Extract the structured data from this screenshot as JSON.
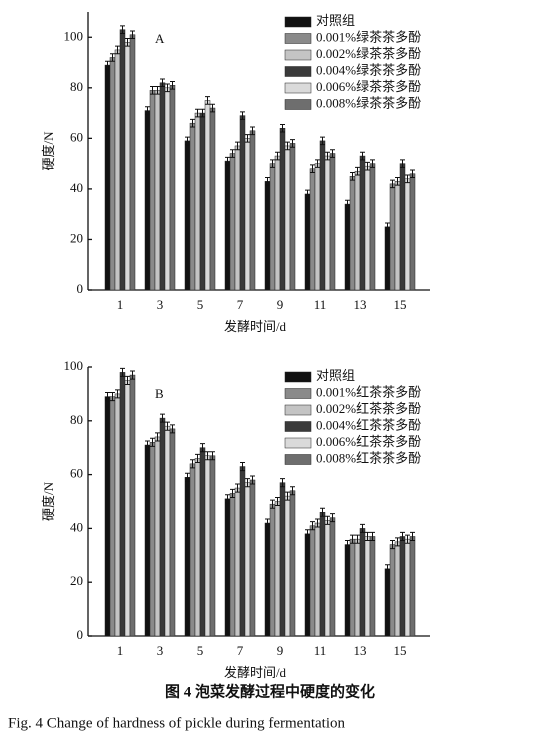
{
  "chart_data": [
    {
      "type": "bar",
      "annotation": "A",
      "x_label": "发酵时间/d",
      "y_label": "硬度/N",
      "categories": [
        "1",
        "3",
        "5",
        "7",
        "9",
        "11",
        "13",
        "15"
      ],
      "ylim": [
        0,
        110
      ],
      "yticks": [
        0,
        20,
        40,
        60,
        80,
        100
      ],
      "series": [
        {
          "name": "对照组",
          "color": "#111111",
          "values": [
            89,
            71,
            59,
            51,
            43,
            38,
            34,
            25
          ],
          "errors": [
            1.5,
            1.5,
            1.5,
            1.5,
            1.5,
            1.5,
            1.5,
            1.5
          ]
        },
        {
          "name": "0.001%绿茶茶多酚",
          "color": "#8a8a8a",
          "values": [
            92,
            79,
            66,
            54,
            50,
            48,
            45,
            42
          ],
          "errors": [
            1.5,
            1.5,
            1.5,
            1.5,
            1.5,
            1.5,
            1.5,
            1.5
          ]
        },
        {
          "name": "0.002%绿茶茶多酚",
          "color": "#c4c4c4",
          "values": [
            95,
            79,
            70,
            57,
            53,
            50,
            47,
            43
          ],
          "errors": [
            1.5,
            1.5,
            1.5,
            1.5,
            1.5,
            1.5,
            1.5,
            1.5
          ]
        },
        {
          "name": "0.004%绿茶茶多酚",
          "color": "#3a3a3a",
          "values": [
            103,
            82,
            70,
            69,
            64,
            59,
            53,
            50
          ],
          "errors": [
            1.5,
            1.5,
            1.5,
            1.5,
            1.5,
            1.5,
            1.5,
            1.5
          ]
        },
        {
          "name": "0.006%绿茶茶多酚",
          "color": "#dadada",
          "values": [
            98,
            80,
            75,
            60,
            57,
            53,
            49,
            44
          ],
          "errors": [
            1.5,
            1.5,
            1.5,
            1.5,
            1.5,
            1.5,
            1.5,
            1.5
          ]
        },
        {
          "name": "0.008%绿茶茶多酚",
          "color": "#6e6e6e",
          "values": [
            101,
            81,
            72,
            63,
            58,
            54,
            50,
            46
          ],
          "errors": [
            1.5,
            1.5,
            1.5,
            1.5,
            1.5,
            1.5,
            1.5,
            1.5
          ]
        }
      ]
    },
    {
      "type": "bar",
      "annotation": "B",
      "x_label": "发酵时间/d",
      "y_label": "硬度/N",
      "categories": [
        "1",
        "3",
        "5",
        "7",
        "9",
        "11",
        "13",
        "15"
      ],
      "ylim": [
        0,
        100
      ],
      "yticks": [
        0,
        20,
        40,
        60,
        80,
        100
      ],
      "series": [
        {
          "name": "对照组",
          "color": "#111111",
          "values": [
            89,
            71,
            59,
            51,
            42,
            38,
            34,
            25
          ],
          "errors": [
            1.5,
            1.5,
            1.5,
            1.5,
            1.5,
            1.5,
            1.5,
            1.5
          ]
        },
        {
          "name": "0.001%红茶茶多酚",
          "color": "#8a8a8a",
          "values": [
            89,
            72,
            64,
            53,
            49,
            41,
            36,
            34
          ],
          "errors": [
            1.5,
            1.5,
            1.5,
            1.5,
            1.5,
            1.5,
            1.5,
            1.5
          ]
        },
        {
          "name": "0.002%红茶茶多酚",
          "color": "#c4c4c4",
          "values": [
            90,
            74,
            66,
            55,
            50,
            42,
            36,
            35
          ],
          "errors": [
            1.5,
            1.5,
            1.5,
            1.5,
            1.5,
            1.5,
            1.5,
            1.5
          ]
        },
        {
          "name": "0.004%红茶茶多酚",
          "color": "#3a3a3a",
          "values": [
            98,
            81,
            70,
            63,
            57,
            46,
            40,
            37
          ],
          "errors": [
            1.5,
            1.5,
            1.5,
            1.5,
            1.5,
            1.5,
            1.5,
            1.5
          ]
        },
        {
          "name": "0.006%红茶茶多酚",
          "color": "#dadada",
          "values": [
            95,
            78,
            67,
            57,
            52,
            43,
            37,
            36
          ],
          "errors": [
            1.5,
            1.5,
            1.5,
            1.5,
            1.5,
            1.5,
            1.5,
            1.5
          ]
        },
        {
          "name": "0.008%红茶茶多酚",
          "color": "#6e6e6e",
          "values": [
            97,
            77,
            67,
            58,
            54,
            44,
            37,
            37
          ],
          "errors": [
            1.5,
            1.5,
            1.5,
            1.5,
            1.5,
            1.5,
            1.5,
            1.5
          ]
        }
      ]
    }
  ],
  "caption": {
    "title": "图 4   泡菜发酵过程中硬度的变化",
    "subtitle": "Fig. 4 Change of hardness of pickle during fermentation"
  }
}
